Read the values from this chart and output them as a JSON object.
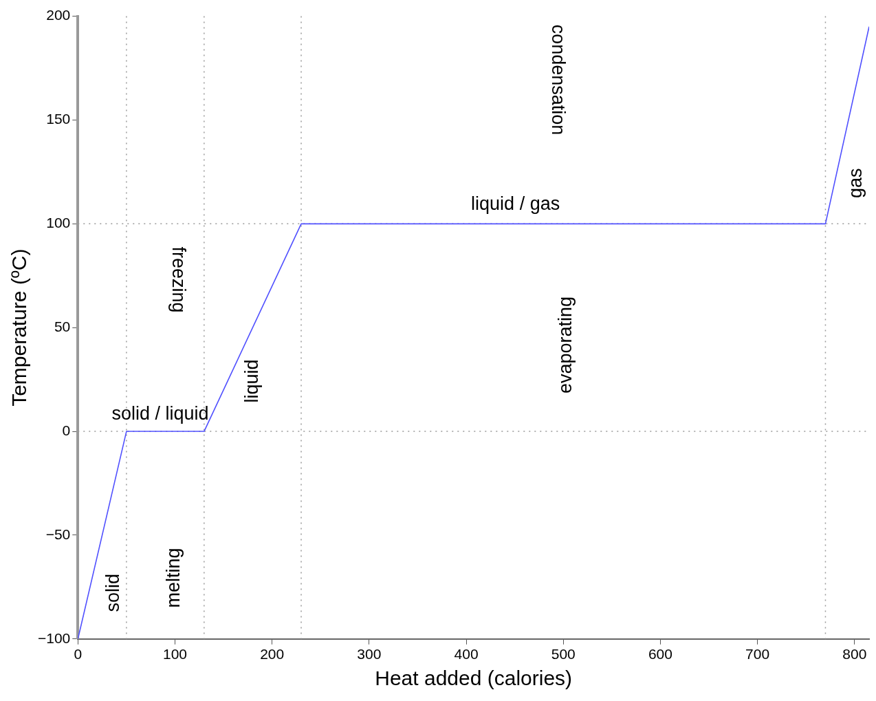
{
  "chart_data": {
    "type": "line",
    "xlabel": "Heat added (calories)",
    "ylabel": "Temperature (ºC)",
    "x": [
      0,
      50,
      130,
      230,
      770,
      815
    ],
    "series": [
      {
        "color": "#5050ff",
        "values": [
          -100,
          0,
          0,
          100,
          100,
          195
        ]
      }
    ],
    "xlim": [
      0,
      815
    ],
    "xticks": [
      0,
      100,
      200,
      300,
      400,
      500,
      600,
      700,
      800
    ],
    "ylim": [
      -100,
      200
    ],
    "yticks": [
      -100,
      -50,
      0,
      50,
      100,
      150,
      200
    ],
    "grid": false,
    "legend": false,
    "marker": "none",
    "line_style": "solid",
    "ref_lines": [
      {
        "axis": "x",
        "value": 50,
        "color": "#999999",
        "line_style": "dotted"
      },
      {
        "axis": "x",
        "value": 130,
        "color": "#999999",
        "line_style": "dotted"
      },
      {
        "axis": "x",
        "value": 230,
        "color": "#999999",
        "line_style": "dotted"
      },
      {
        "axis": "x",
        "value": 770,
        "color": "#999999",
        "line_style": "dotted"
      },
      {
        "axis": "y",
        "value": 0,
        "color": "#999999",
        "line_style": "dotted"
      },
      {
        "axis": "y",
        "value": 100,
        "color": "#999999",
        "line_style": "dotted"
      }
    ],
    "annotations": [
      "solid / liquid",
      "liquid / gas",
      "solid",
      "melting",
      "freezing",
      "liquid",
      "evaporating",
      "condensation",
      "gas"
    ]
  }
}
